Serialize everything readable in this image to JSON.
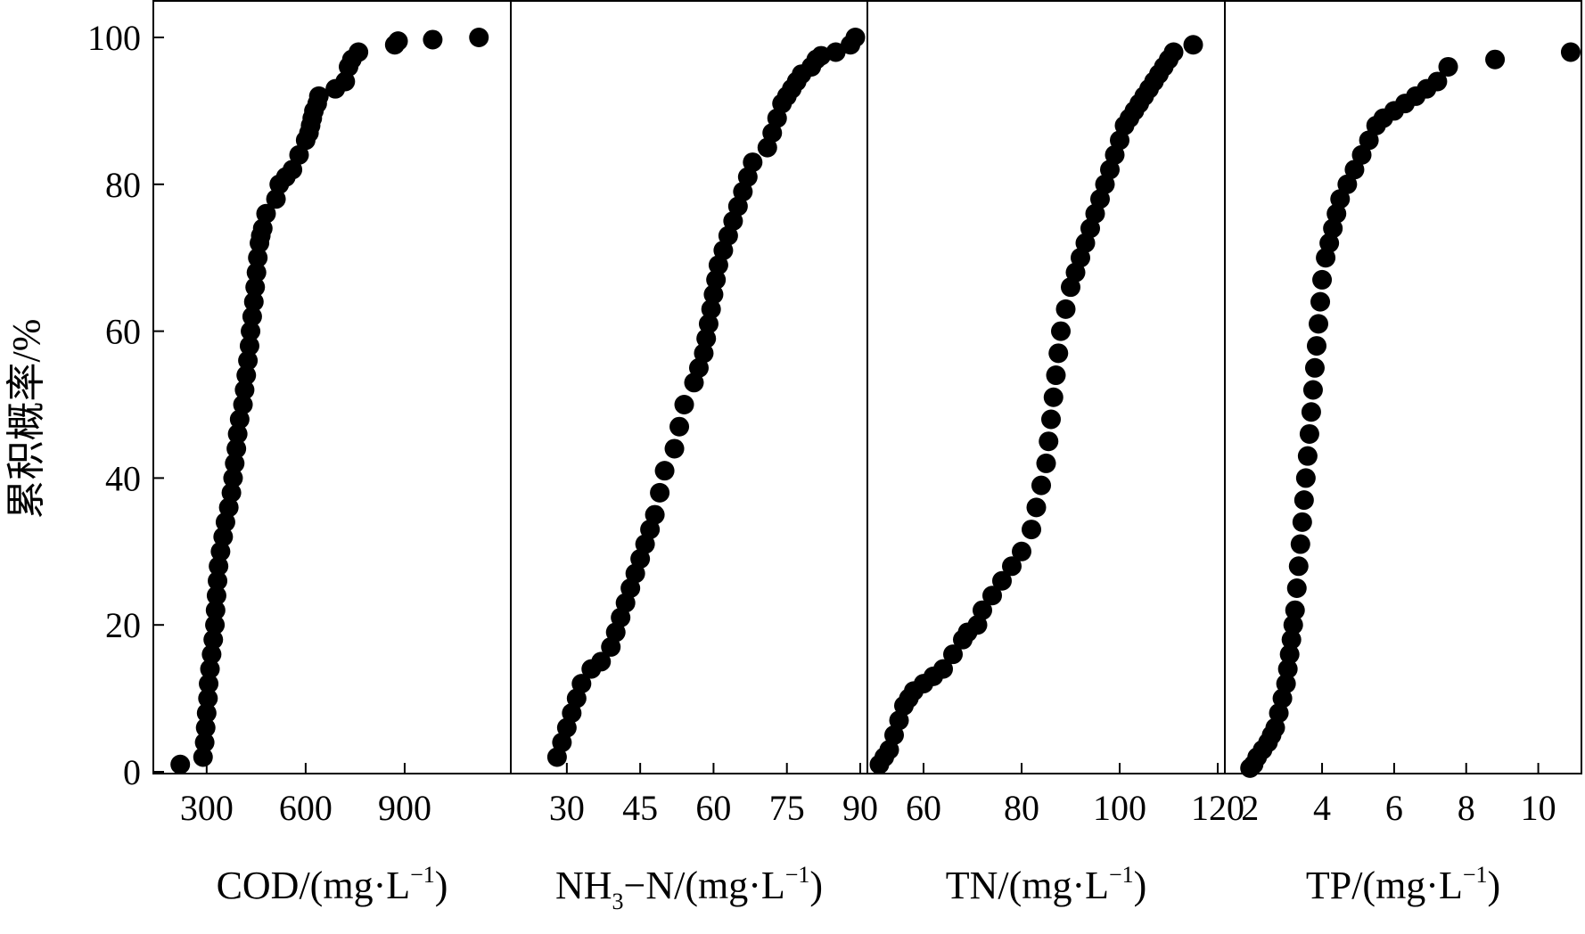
{
  "chart_data": {
    "type": "scatter",
    "shared_y": {
      "label": "累积概率/%",
      "ylim": [
        0,
        100
      ],
      "ticks": [
        "0",
        "20",
        "40",
        "60",
        "80",
        "100"
      ]
    },
    "panels": [
      {
        "name": "COD",
        "xlabel_parts": [
          "COD/(mg·L",
          "−1",
          ")"
        ],
        "xlim": [
          160,
          1200
        ],
        "xticks": [
          300,
          600,
          900
        ],
        "xtick_labels": [
          "300",
          "600",
          "900"
        ],
        "x": [
          220,
          289,
          294,
          297,
          300,
          304,
          306,
          310,
          315,
          320,
          325,
          327,
          330,
          333,
          336,
          342,
          350,
          357,
          367,
          375,
          380,
          385,
          390,
          394,
          400,
          410,
          415,
          420,
          425,
          430,
          433,
          438,
          443,
          447,
          451,
          455,
          460,
          464,
          470,
          480,
          510,
          520,
          540,
          560,
          580,
          600,
          610,
          615,
          620,
          625,
          635,
          640,
          690,
          720,
          730,
          740,
          760,
          870,
          880,
          985,
          1125
        ],
        "y": [
          1,
          2,
          4,
          6,
          8,
          10,
          12,
          14,
          16,
          18,
          20,
          22,
          24,
          26,
          28,
          30,
          32,
          34,
          36,
          38,
          40,
          42,
          44,
          46,
          48,
          50,
          52,
          54,
          56,
          58,
          60,
          62,
          64,
          66,
          68,
          70,
          72,
          73,
          74,
          76,
          78,
          80,
          81,
          82,
          84,
          86,
          87,
          88,
          89,
          90,
          91,
          92,
          93,
          94,
          96,
          97,
          98,
          99,
          99.5,
          99.7,
          100
        ]
      },
      {
        "name": "NH3-N",
        "xlabel_parts": [
          "NH",
          "3",
          "−N/(mg·L",
          "−1",
          ")"
        ],
        "xlim": [
          20,
          90
        ],
        "xticks": [
          30,
          45,
          60,
          75,
          90
        ],
        "xtick_labels": [
          "30",
          "45",
          "60",
          "75",
          "90"
        ],
        "x": [
          28,
          29,
          30,
          31,
          32,
          33,
          35,
          37,
          39,
          40,
          41,
          42,
          43,
          44,
          45,
          46,
          47,
          48,
          49,
          50,
          52,
          53,
          54,
          56,
          57,
          58,
          58.5,
          59,
          59.5,
          60,
          60.5,
          61,
          62,
          63,
          64,
          65,
          66,
          67,
          68,
          71,
          72,
          73,
          74,
          75,
          76,
          77,
          78,
          80,
          81,
          82,
          85,
          88,
          89
        ],
        "y": [
          2,
          4,
          6,
          8,
          10,
          12,
          14,
          15,
          17,
          19,
          21,
          23,
          25,
          27,
          29,
          31,
          33,
          35,
          38,
          41,
          44,
          47,
          50,
          53,
          55,
          57,
          59,
          61,
          63,
          65,
          67,
          69,
          71,
          73,
          75,
          77,
          79,
          81,
          83,
          85,
          87,
          89,
          91,
          92,
          93,
          94,
          95,
          96,
          97,
          97.5,
          98,
          99,
          100
        ]
      },
      {
        "name": "TN",
        "xlabel_parts": [
          "TN/(mg·L",
          "−1",
          ")"
        ],
        "xlim": [
          50,
          120
        ],
        "xticks": [
          60,
          80,
          100,
          120
        ],
        "xtick_labels": [
          "60",
          "80",
          "100",
          "120"
        ],
        "x": [
          51,
          52,
          53,
          54,
          55,
          56,
          57,
          58,
          60,
          62,
          64,
          66,
          68,
          69,
          71,
          72,
          74,
          76,
          78,
          80,
          82,
          83,
          84,
          85,
          85.5,
          86,
          86.5,
          87,
          87.5,
          88,
          89,
          90,
          91,
          92,
          93,
          94,
          95,
          96,
          97,
          98,
          99,
          100,
          101,
          102,
          103,
          104,
          105,
          106,
          107,
          108,
          109,
          110,
          111,
          115
        ],
        "y": [
          1,
          2,
          3,
          5,
          7,
          9,
          10,
          11,
          12,
          13,
          14,
          16,
          18,
          19,
          20,
          22,
          24,
          26,
          28,
          30,
          33,
          36,
          39,
          42,
          45,
          48,
          51,
          54,
          57,
          60,
          63,
          66,
          68,
          70,
          72,
          74,
          76,
          78,
          80,
          82,
          84,
          86,
          88,
          89,
          90,
          91,
          92,
          93,
          94,
          95,
          96,
          97,
          98,
          99
        ]
      },
      {
        "name": "TP",
        "xlabel_parts": [
          "TP/(mg·L",
          "−1",
          ")"
        ],
        "xlim": [
          1.5,
          11
        ],
        "xticks": [
          2,
          4,
          6,
          8,
          10
        ],
        "xtick_labels": [
          "2",
          "4",
          "6",
          "8",
          "10"
        ],
        "x": [
          2.0,
          2.1,
          2.2,
          2.35,
          2.5,
          2.6,
          2.7,
          2.8,
          2.9,
          3.0,
          3.05,
          3.1,
          3.15,
          3.2,
          3.25,
          3.3,
          3.35,
          3.4,
          3.45,
          3.5,
          3.55,
          3.6,
          3.65,
          3.7,
          3.75,
          3.8,
          3.85,
          3.9,
          3.95,
          4.0,
          4.1,
          4.2,
          4.3,
          4.4,
          4.5,
          4.7,
          4.9,
          5.1,
          5.3,
          5.5,
          5.7,
          6.0,
          6.3,
          6.6,
          6.9,
          7.2,
          7.5,
          8.8,
          10.9
        ],
        "y": [
          0.5,
          1,
          2,
          3,
          4,
          5,
          6,
          8,
          10,
          12,
          14,
          16,
          18,
          20,
          22,
          25,
          28,
          31,
          34,
          37,
          40,
          43,
          46,
          49,
          52,
          55,
          58,
          61,
          64,
          67,
          70,
          72,
          74,
          76,
          78,
          80,
          82,
          84,
          86,
          88,
          89,
          90,
          91,
          92,
          93,
          94,
          96,
          97,
          98
        ]
      }
    ]
  }
}
